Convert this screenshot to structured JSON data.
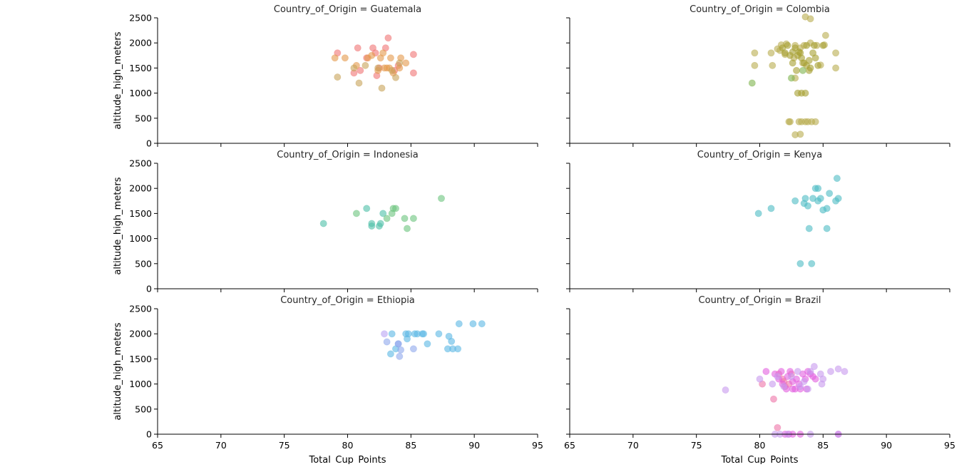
{
  "chart_data": [
    {
      "type": "scatter",
      "title": "Country_of_Origin = Guatemala",
      "xlabel": "",
      "ylabel": "altitude_high_meters",
      "xlim": [
        65,
        95
      ],
      "ylim": [
        0,
        2500
      ],
      "xticks": [],
      "yticks": [
        "0",
        "500",
        "1000",
        "1500",
        "2000",
        "2500"
      ],
      "series": [
        {
          "color": "#f07474",
          "points": [
            [
              79.2,
              1800
            ],
            [
              80.8,
              1900
            ],
            [
              81.5,
              1700
            ],
            [
              82.0,
              1900
            ],
            [
              82.3,
              1350
            ],
            [
              82.5,
              1500
            ],
            [
              83.2,
              2100
            ],
            [
              83.0,
              1900
            ],
            [
              81.0,
              1450
            ],
            [
              80.5,
              1400
            ],
            [
              85.2,
              1770
            ],
            [
              85.2,
              1400
            ],
            [
              84.0,
              1550
            ],
            [
              83.7,
              1450
            ],
            [
              82.2,
              1800
            ]
          ]
        },
        {
          "color": "#e59a4c",
          "points": [
            [
              79.0,
              1700
            ],
            [
              79.8,
              1700
            ],
            [
              80.7,
              1550
            ],
            [
              81.6,
              1700
            ],
            [
              82.6,
              1700
            ],
            [
              82.8,
              1800
            ],
            [
              83.1,
              1500
            ],
            [
              83.4,
              1700
            ],
            [
              84.2,
              1700
            ],
            [
              84.6,
              1600
            ],
            [
              83.6,
              1400
            ],
            [
              82.9,
              1500
            ],
            [
              83.3,
              1500
            ],
            [
              84.1,
              1500
            ],
            [
              81.9,
              1750
            ],
            [
              82.4,
              1450
            ]
          ]
        },
        {
          "color": "#c8a45a",
          "points": [
            [
              79.2,
              1320
            ],
            [
              80.5,
              1500
            ],
            [
              80.9,
              1200
            ],
            [
              82.7,
              1100
            ],
            [
              83.8,
              1310
            ],
            [
              82.4,
              1500
            ],
            [
              81.4,
              1550
            ],
            [
              83.5,
              1450
            ],
            [
              84.1,
              1600
            ]
          ]
        }
      ]
    },
    {
      "type": "scatter",
      "title": "Country_of_Origin = Colombia",
      "xlabel": "",
      "ylabel": "",
      "xlim": [
        65,
        95
      ],
      "ylim": [
        0,
        2500
      ],
      "xticks": [],
      "yticks": [],
      "series": [
        {
          "color": "#b9ad50",
          "points": [
            [
              79.6,
              1800
            ],
            [
              79.6,
              1550
            ],
            [
              80.9,
              1800
            ],
            [
              81.6,
              1850
            ],
            [
              81.7,
              1960
            ],
            [
              82.1,
              1980
            ],
            [
              82.8,
              1950
            ],
            [
              83.2,
              1900
            ],
            [
              83.5,
              1950
            ],
            [
              84.0,
              2000
            ],
            [
              84.5,
              1950
            ],
            [
              85.1,
              1960
            ],
            [
              85.2,
              2150
            ],
            [
              86.0,
              1800
            ],
            [
              86.0,
              1500
            ],
            [
              82.7,
              1700
            ],
            [
              81.0,
              1550
            ],
            [
              82.8,
              1300
            ],
            [
              82.3,
              430
            ],
            [
              82.4,
              430
            ],
            [
              83.1,
              430
            ],
            [
              83.3,
              430
            ],
            [
              83.6,
              430
            ],
            [
              83.8,
              430
            ],
            [
              84.1,
              430
            ],
            [
              84.4,
              430
            ],
            [
              82.8,
              170
            ],
            [
              83.2,
              180
            ],
            [
              83.6,
              2520
            ],
            [
              84.0,
              2480
            ],
            [
              81.4,
              1880
            ],
            [
              82.0,
              1770
            ],
            [
              84.8,
              1560
            ],
            [
              83.4,
              1600
            ]
          ]
        },
        {
          "color": "#a6a032",
          "points": [
            [
              81.8,
              1900
            ],
            [
              82.0,
              1800
            ],
            [
              82.4,
              1750
            ],
            [
              82.6,
              1820
            ],
            [
              82.8,
              1900
            ],
            [
              83.0,
              1750
            ],
            [
              83.1,
              1820
            ],
            [
              83.3,
              1700
            ],
            [
              83.5,
              1600
            ],
            [
              83.7,
              1550
            ],
            [
              83.9,
              1650
            ],
            [
              84.0,
              1500
            ],
            [
              84.2,
              1800
            ],
            [
              84.4,
              1700
            ],
            [
              84.6,
              1550
            ],
            [
              85.0,
              1950
            ],
            [
              82.2,
              1950
            ],
            [
              82.6,
              1600
            ],
            [
              83.9,
              1450
            ],
            [
              83.2,
              1800
            ],
            [
              83.0,
              1000
            ],
            [
              83.3,
              1000
            ],
            [
              83.6,
              1000
            ],
            [
              82.9,
              1450
            ],
            [
              83.7,
              1950
            ],
            [
              84.3,
              1950
            ]
          ]
        },
        {
          "color": "#7fb44e",
          "points": [
            [
              79.4,
              1200
            ],
            [
              83.4,
              1450
            ],
            [
              82.5,
              1300
            ]
          ]
        }
      ]
    },
    {
      "type": "scatter",
      "title": "Country_of_Origin = Indonesia",
      "xlabel": "",
      "ylabel": "altitude_high_meters",
      "xlim": [
        65,
        95
      ],
      "ylim": [
        0,
        2500
      ],
      "xticks": [],
      "yticks": [
        "0",
        "500",
        "1000",
        "1500",
        "2000",
        "2500"
      ],
      "series": [
        {
          "color": "#4fc0a8",
          "points": [
            [
              78.1,
              1300
            ],
            [
              81.5,
              1600
            ],
            [
              81.9,
              1300
            ],
            [
              81.9,
              1250
            ],
            [
              82.5,
              1250
            ],
            [
              82.6,
              1300
            ],
            [
              82.8,
              1500
            ]
          ]
        },
        {
          "color": "#6cc47e",
          "points": [
            [
              80.7,
              1500
            ],
            [
              83.1,
              1400
            ],
            [
              83.5,
              1500
            ],
            [
              83.6,
              1600
            ],
            [
              83.8,
              1600
            ],
            [
              84.5,
              1400
            ],
            [
              84.7,
              1200
            ],
            [
              85.2,
              1400
            ],
            [
              87.4,
              1800
            ]
          ]
        }
      ]
    },
    {
      "type": "scatter",
      "title": "Country_of_Origin = Kenya",
      "xlabel": "",
      "ylabel": "",
      "xlim": [
        65,
        95
      ],
      "ylim": [
        0,
        2500
      ],
      "xticks": [],
      "yticks": [],
      "series": [
        {
          "color": "#4fbcc4",
          "points": [
            [
              79.9,
              1500
            ],
            [
              80.9,
              1600
            ],
            [
              82.8,
              1750
            ],
            [
              83.2,
              500
            ],
            [
              83.5,
              1700
            ],
            [
              83.6,
              1800
            ],
            [
              83.8,
              1650
            ],
            [
              83.9,
              1200
            ],
            [
              84.1,
              500
            ],
            [
              84.2,
              1800
            ],
            [
              84.4,
              2000
            ],
            [
              84.6,
              2000
            ],
            [
              84.6,
              1750
            ],
            [
              84.8,
              1800
            ],
            [
              85.0,
              1570
            ],
            [
              85.3,
              1600
            ],
            [
              85.3,
              1200
            ],
            [
              85.5,
              1900
            ],
            [
              86.0,
              1750
            ],
            [
              86.1,
              2200
            ],
            [
              86.2,
              1800
            ]
          ]
        }
      ]
    },
    {
      "type": "scatter",
      "title": "Country_of_Origin = Ethiopia",
      "xlabel": "Total_Cup_Points",
      "ylabel": "altitude_high_meters",
      "xlim": [
        65,
        95
      ],
      "ylim": [
        0,
        2500
      ],
      "xticks": [
        "65",
        "70",
        "75",
        "80",
        "85",
        "90",
        "95"
      ],
      "yticks": [
        "0",
        "500",
        "1000",
        "1500",
        "2000",
        "2500"
      ],
      "series": [
        {
          "color": "#5cb8e4",
          "points": [
            [
              83.5,
              2000
            ],
            [
              84.6,
              2000
            ],
            [
              84.8,
              2000
            ],
            [
              85.5,
              2000
            ],
            [
              85.9,
              2000
            ],
            [
              86.0,
              2000
            ],
            [
              87.2,
              2000
            ],
            [
              88.8,
              2200
            ],
            [
              89.9,
              2200
            ],
            [
              90.6,
              2200
            ],
            [
              88.2,
              1850
            ],
            [
              88.3,
              1700
            ],
            [
              88.7,
              1700
            ],
            [
              87.9,
              1700
            ],
            [
              88.0,
              1950
            ],
            [
              86.3,
              1800
            ],
            [
              84.7,
              1900
            ],
            [
              85.3,
              2000
            ],
            [
              83.4,
              1600
            ],
            [
              83.8,
              1700
            ]
          ]
        },
        {
          "color": "#8fa8ec",
          "points": [
            [
              83.1,
              1840
            ],
            [
              84.0,
              1800
            ],
            [
              84.1,
              1550
            ],
            [
              84.2,
              1680
            ],
            [
              85.2,
              1700
            ],
            [
              84.0,
              1800
            ]
          ]
        },
        {
          "color": "#b9a4f4",
          "points": [
            [
              82.9,
              2000
            ]
          ]
        }
      ]
    },
    {
      "type": "scatter",
      "title": "Country_of_Origin = Brazil",
      "xlabel": "Total_Cup_Points",
      "ylabel": "",
      "xlim": [
        65,
        95
      ],
      "ylim": [
        0,
        2500
      ],
      "xticks": [
        "65",
        "70",
        "75",
        "80",
        "85",
        "90",
        "95"
      ],
      "yticks": [],
      "series": [
        {
          "color": "#ee75a8",
          "points": [
            [
              80.2,
              1000
            ],
            [
              81.1,
              700
            ],
            [
              81.5,
              1200
            ],
            [
              81.8,
              1100
            ],
            [
              82.0,
              950
            ],
            [
              82.3,
              1000
            ],
            [
              81.4,
              130
            ],
            [
              82.5,
              1200
            ],
            [
              81.9,
              1050
            ]
          ]
        },
        {
          "color": "#e360e0",
          "points": [
            [
              80.5,
              1250
            ],
            [
              81.2,
              1200
            ],
            [
              81.7,
              1250
            ],
            [
              82.2,
              1150
            ],
            [
              82.4,
              1250
            ],
            [
              82.6,
              1050
            ],
            [
              82.8,
              900
            ],
            [
              83.1,
              1000
            ],
            [
              83.4,
              1200
            ],
            [
              83.8,
              1250
            ],
            [
              84.2,
              1150
            ],
            [
              84.4,
              1100
            ],
            [
              82.1,
              900
            ],
            [
              82.6,
              900
            ],
            [
              83.2,
              900
            ],
            [
              83.7,
              900
            ],
            [
              82.0,
              0
            ],
            [
              82.3,
              0
            ],
            [
              82.6,
              0
            ],
            [
              83.2,
              0
            ],
            [
              86.2,
              0
            ],
            [
              81.8,
              1000
            ],
            [
              82.9,
              1100
            ],
            [
              83.6,
              1100
            ],
            [
              84.0,
              1200
            ],
            [
              81.5,
              1100
            ]
          ]
        },
        {
          "color": "#c89aee",
          "points": [
            [
              77.3,
              880
            ],
            [
              80.0,
              1100
            ],
            [
              81.0,
              1000
            ],
            [
              81.4,
              1150
            ],
            [
              81.9,
              950
            ],
            [
              83.5,
              1050
            ],
            [
              84.0,
              1250
            ],
            [
              84.3,
              1350
            ],
            [
              84.8,
              1200
            ],
            [
              85.0,
              1100
            ],
            [
              84.9,
              1000
            ],
            [
              85.6,
              1250
            ],
            [
              86.2,
              1300
            ],
            [
              86.7,
              1250
            ],
            [
              83.0,
              1250
            ],
            [
              83.2,
              950
            ],
            [
              83.8,
              900
            ],
            [
              81.2,
              0
            ],
            [
              81.6,
              0
            ],
            [
              82.2,
              0
            ],
            [
              84.0,
              0
            ],
            [
              86.2,
              0
            ],
            [
              82.5,
              1150
            ]
          ]
        }
      ]
    }
  ]
}
